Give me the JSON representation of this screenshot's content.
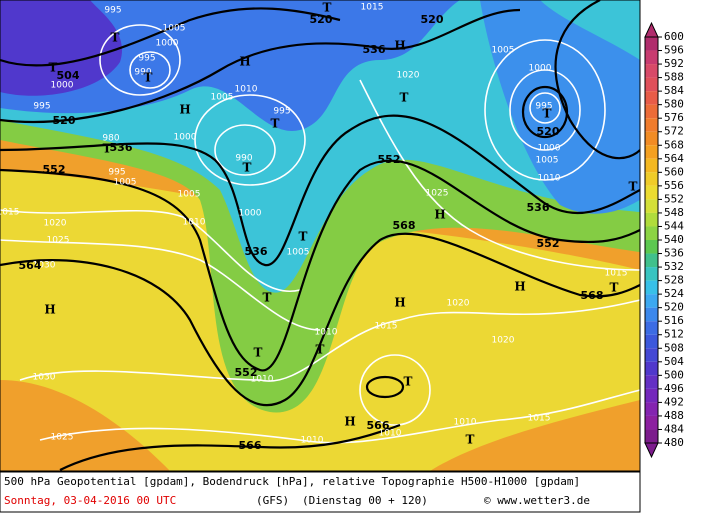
{
  "map": {
    "geopotential_labels": [
      "504",
      "520",
      "536",
      "552",
      "564",
      "536",
      "552",
      "566",
      "566",
      "568",
      "552",
      "536",
      "520",
      "520",
      "520",
      "536",
      "552",
      "568"
    ],
    "isobar_labels": [
      "995",
      "1005",
      "1000",
      "995",
      "990",
      "1000",
      "995",
      "980",
      "995",
      "1005",
      "1000",
      "1005",
      "1010",
      "995",
      "990",
      "1000",
      "1005",
      "1010",
      "1005",
      "1015",
      "1020",
      "1025",
      "1030",
      "1030",
      "1025",
      "1015",
      "1020",
      "1005",
      "1000",
      "995",
      "1000",
      "1005",
      "1010",
      "1025",
      "1020",
      "1020",
      "1015",
      "1010",
      "1010",
      "1010",
      "1010",
      "1010",
      "1015",
      "1015"
    ],
    "centers": [
      "T",
      "T",
      "T",
      "T",
      "T",
      "T",
      "T",
      "T",
      "T",
      "T",
      "T",
      "T",
      "T",
      "T",
      "T",
      "T",
      "T",
      "H",
      "H",
      "H",
      "H",
      "H",
      "H",
      "H",
      "H"
    ]
  },
  "colorbar": {
    "ticks": [
      600,
      596,
      592,
      588,
      584,
      580,
      576,
      572,
      568,
      564,
      560,
      556,
      552,
      548,
      544,
      540,
      536,
      532,
      528,
      524,
      520,
      516,
      512,
      508,
      504,
      500,
      496,
      492,
      488,
      484,
      480
    ],
    "colors": [
      "#b02c6c",
      "#c83c70",
      "#d84a68",
      "#e0505a",
      "#e85c48",
      "#ec6c38",
      "#f07c2c",
      "#f28c24",
      "#f4a020",
      "#f4b820",
      "#f0cc28",
      "#ecdc30",
      "#d4e038",
      "#b0dc3c",
      "#8cd444",
      "#5cc850",
      "#40c08c",
      "#38c4c0",
      "#38c0e8",
      "#3ca8f0",
      "#3c88ec",
      "#3c6ce4",
      "#3c58dc",
      "#4448d4",
      "#5038cc",
      "#6430c4",
      "#7428bc",
      "#8424b0",
      "#8c20a0",
      "#7c1c8c"
    ]
  },
  "caption": {
    "line1": "500 hPa Geopotential [gpdam], Bodendruck [hPa], relative Topographie H500-H1000 [gpdam]",
    "date": "Sonntag, 03-04-2016  00 UTC",
    "model": "(GFS)",
    "forecast": "(Dienstag 00 + 120)",
    "copyright": "© www.wetter3.de"
  }
}
